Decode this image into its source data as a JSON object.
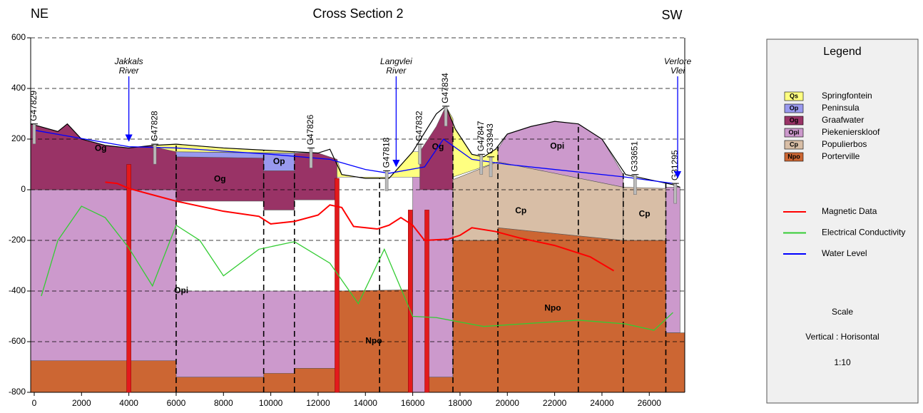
{
  "chart_data": {
    "type": "cross-section",
    "title": "Cross Section 2",
    "left_label": "NE",
    "right_label": "SW",
    "xlim": [
      -150,
      27500
    ],
    "ylim": [
      -800,
      600
    ],
    "xticks": [
      0,
      2000,
      4000,
      6000,
      8000,
      10000,
      12000,
      14000,
      16000,
      18000,
      20000,
      22000,
      24000,
      26000
    ],
    "yticks": [
      -800,
      -600,
      -400,
      -200,
      0,
      200,
      400,
      600
    ],
    "grid": true,
    "units": [
      {
        "code": "Qs",
        "name": "Springfontein",
        "color": "#ffff80",
        "polygons": [
          {
            "points": [
              [
                5000,
                175
              ],
              [
                6000,
                180
              ],
              [
                8000,
                165
              ],
              [
                10000,
                155
              ],
              [
                11000,
                150
              ],
              [
                11000,
                145
              ],
              [
                6000,
                150
              ],
              [
                5000,
                170
              ]
            ]
          },
          {
            "points": [
              [
                12800,
                120
              ],
              [
                13000,
                60
              ],
              [
                14000,
                45
              ],
              [
                15000,
                45
              ],
              [
                16000,
                150
              ],
              [
                16300,
                150
              ],
              [
                16300,
                50
              ],
              [
                12800,
                50
              ]
            ]
          },
          {
            "points": [
              [
                17400,
                330
              ],
              [
                17800,
                240
              ],
              [
                18500,
                140
              ],
              [
                19000,
                130
              ],
              [
                19500,
                160
              ],
              [
                19600,
                160
              ],
              [
                19600,
                110
              ],
              [
                17700,
                50
              ],
              [
                17700,
                280
              ]
            ]
          }
        ]
      },
      {
        "code": "Op",
        "name": "Peninsula",
        "color": "#9999ee",
        "polygons": [
          {
            "points": [
              [
                6000,
                130
              ],
              [
                6000,
                150
              ],
              [
                9700,
                145
              ],
              [
                9700,
                125
              ]
            ]
          },
          {
            "points": [
              [
                9700,
                75
              ],
              [
                9700,
                145
              ],
              [
                11000,
                145
              ],
              [
                11000,
                75
              ]
            ],
            "label": "Op"
          }
        ]
      },
      {
        "code": "Og",
        "name": "Graafwater",
        "color": "#993366",
        "polygons": [
          {
            "points": [
              [
                -150,
                0
              ],
              [
                -150,
                260
              ],
              [
                1000,
                230
              ],
              [
                1400,
                260
              ],
              [
                2000,
                200
              ],
              [
                3000,
                175
              ],
              [
                4000,
                165
              ],
              [
                5000,
                175
              ],
              [
                6000,
                160
              ],
              [
                6000,
                0
              ]
            ],
            "label": "Og"
          },
          {
            "points": [
              [
                6000,
                -45
              ],
              [
                6000,
                130
              ],
              [
                9700,
                125
              ],
              [
                9700,
                -45
              ]
            ],
            "label": "Og"
          },
          {
            "points": [
              [
                9700,
                -80
              ],
              [
                9700,
                75
              ],
              [
                11000,
                75
              ],
              [
                11000,
                -80
              ]
            ]
          },
          {
            "points": [
              [
                11000,
                -40
              ],
              [
                11000,
                145
              ],
              [
                12000,
                145
              ],
              [
                12800,
                120
              ],
              [
                12800,
                -40
              ]
            ]
          },
          {
            "points": [
              [
                16300,
                0
              ],
              [
                16300,
                150
              ],
              [
                17000,
                250
              ],
              [
                17400,
                330
              ],
              [
                17700,
                280
              ],
              [
                17700,
                0
              ]
            ],
            "label": "Og"
          }
        ]
      },
      {
        "code": "Opi",
        "name": "Piekenierskloof",
        "color": "#cc99cc",
        "polygons": [
          {
            "points": [
              [
                -150,
                -800
              ],
              [
                -150,
                0
              ],
              [
                6000,
                0
              ],
              [
                6000,
                -400
              ],
              [
                12800,
                -400
              ],
              [
                12800,
                -800
              ]
            ],
            "label": "Opi"
          },
          {
            "points": [
              [
                16000,
                -800
              ],
              [
                16000,
                60
              ],
              [
                17700,
                60
              ],
              [
                17700,
                -800
              ]
            ]
          },
          {
            "points": [
              [
                19600,
                110
              ],
              [
                19600,
                160
              ],
              [
                20000,
                220
              ],
              [
                21000,
                250
              ],
              [
                22000,
                270
              ],
              [
                23000,
                260
              ],
              [
                24000,
                200
              ],
              [
                24900,
                60
              ],
              [
                24900,
                10
              ]
            ],
            "label": "Opi"
          },
          {
            "points": [
              [
                26700,
                -565
              ],
              [
                26700,
                10
              ],
              [
                27300,
                10
              ],
              [
                27300,
                -565
              ]
            ]
          }
        ]
      },
      {
        "code": "Cp",
        "name": "Populierbos",
        "color": "#d8bea6",
        "polygons": [
          {
            "points": [
              [
                17700,
                -200
              ],
              [
                17700,
                40
              ],
              [
                19600,
                110
              ],
              [
                24900,
                10
              ],
              [
                24900,
                -200
              ],
              [
                19600,
                -150
              ],
              [
                19600,
                -200
              ]
            ],
            "label": "Cp"
          },
          {
            "points": [
              [
                24900,
                -200
              ],
              [
                24900,
                10
              ],
              [
                26700,
                5
              ],
              [
                26700,
                -200
              ]
            ],
            "label": "Cp"
          }
        ]
      },
      {
        "code": "Npo",
        "name": "Porterville",
        "color": "#cc6633",
        "polygons": [
          {
            "points": [
              [
                -150,
                -800
              ],
              [
                -150,
                -675
              ],
              [
                6000,
                -675
              ],
              [
                6000,
                -740
              ],
              [
                9700,
                -740
              ],
              [
                9700,
                -725
              ],
              [
                11000,
                -725
              ],
              [
                11000,
                -705
              ],
              [
                12800,
                -705
              ],
              [
                12800,
                -800
              ]
            ]
          },
          {
            "points": [
              [
                12800,
                -800
              ],
              [
                12800,
                -400
              ],
              [
                15900,
                -395
              ],
              [
                15900,
                -800
              ]
            ],
            "label": "Npo"
          },
          {
            "points": [
              [
                16600,
                -800
              ],
              [
                16600,
                -740
              ],
              [
                17700,
                -740
              ],
              [
                17700,
                -200
              ],
              [
                19600,
                -200
              ],
              [
                19600,
                -150
              ],
              [
                24900,
                -200
              ],
              [
                26700,
                -200
              ],
              [
                26700,
                -565
              ],
              [
                27500,
                -565
              ],
              [
                27500,
                -800
              ]
            ],
            "label": "Npo"
          }
        ]
      }
    ],
    "surface": {
      "color": "#000000",
      "x": [
        -150,
        1000,
        1400,
        2000,
        3000,
        4000,
        5000,
        6000,
        8000,
        10000,
        11000,
        12000,
        12500,
        13000,
        14000,
        15000,
        16000,
        17000,
        17400,
        17800,
        18500,
        19000,
        19500,
        20000,
        21000,
        22000,
        23000,
        24000,
        25000,
        26000,
        27000,
        27300
      ],
      "values": [
        260,
        230,
        260,
        200,
        175,
        165,
        175,
        180,
        165,
        155,
        150,
        145,
        160,
        60,
        45,
        45,
        150,
        300,
        330,
        240,
        140,
        130,
        160,
        220,
        250,
        270,
        260,
        200,
        60,
        40,
        20,
        10
      ]
    },
    "series": [
      {
        "name": "Magnetic Data",
        "color": "#ff0000",
        "x": [
          3000,
          3500,
          4000,
          5000,
          6000,
          8000,
          9500,
          10000,
          11000,
          12000,
          12500,
          13000,
          13500,
          14500,
          15000,
          15500,
          16000,
          16500,
          17500,
          18000,
          18500,
          19500,
          20500,
          22000,
          23500,
          24500
        ],
        "values": [
          30,
          25,
          5,
          -20,
          -45,
          -85,
          -105,
          -135,
          -125,
          -100,
          -60,
          -70,
          -145,
          -155,
          -140,
          -110,
          -140,
          -200,
          -195,
          -180,
          -150,
          -165,
          -190,
          -220,
          -265,
          -320
        ]
      },
      {
        "name": "Electrical Conductivity",
        "color": "#33cc33",
        "x": [
          300,
          1000,
          2000,
          3000,
          4000,
          5000,
          6000,
          7000,
          8000,
          9500,
          11000,
          12500,
          13700,
          14800,
          16000,
          17000,
          19000,
          23000,
          25000,
          26200,
          27000
        ],
        "values": [
          -420,
          -200,
          -65,
          -110,
          -230,
          -380,
          -140,
          -200,
          -340,
          -235,
          -205,
          -290,
          -450,
          -235,
          -500,
          -505,
          -540,
          -515,
          -530,
          -555,
          -485
        ]
      },
      {
        "name": "Water Level",
        "color": "#0000ff",
        "x": [
          0,
          4000,
          6000,
          10000,
          12500,
          14000,
          15000,
          16500,
          17300,
          18500,
          20000,
          25000,
          27000
        ],
        "values": [
          235,
          170,
          165,
          140,
          120,
          80,
          65,
          90,
          200,
          120,
          100,
          50,
          25
        ]
      }
    ],
    "dykes": {
      "color": "#e31a1c",
      "x": [
        4000,
        12800,
        15900,
        16600
      ],
      "top": [
        100,
        45,
        -80,
        -80
      ]
    },
    "faults": {
      "x": [
        6000,
        9700,
        11000,
        14600,
        17700,
        19600,
        23000,
        24900,
        26700
      ]
    },
    "boreholes": [
      {
        "name": "G47829",
        "x": 0,
        "top": 260
      },
      {
        "name": "G47828",
        "x": 5100,
        "top": 180
      },
      {
        "name": "G47826",
        "x": 11700,
        "top": 165
      },
      {
        "name": "G47818",
        "x": 14900,
        "top": 75
      },
      {
        "name": "G47832",
        "x": 16300,
        "top": 180
      },
      {
        "name": "G47834",
        "x": 17400,
        "top": 330
      },
      {
        "name": "G47847",
        "x": 18900,
        "top": 140
      },
      {
        "name": "G33943",
        "x": 19300,
        "top": 130
      },
      {
        "name": "G33651",
        "x": 25400,
        "top": 60
      },
      {
        "name": "G31295",
        "x": 27100,
        "top": 25
      }
    ],
    "rivers": [
      {
        "lines": [
          "Jakkals",
          "River"
        ],
        "x": 4000
      },
      {
        "lines": [
          "Langvlei",
          "River"
        ],
        "x": 15300
      },
      {
        "lines": [
          "Verlore",
          "Vlei"
        ],
        "x": 27200
      }
    ],
    "legend": {
      "title": "Legend",
      "scale_title": "Scale",
      "scale_axes": "Vertical : Horisontal",
      "scale_value": "1:10"
    }
  }
}
